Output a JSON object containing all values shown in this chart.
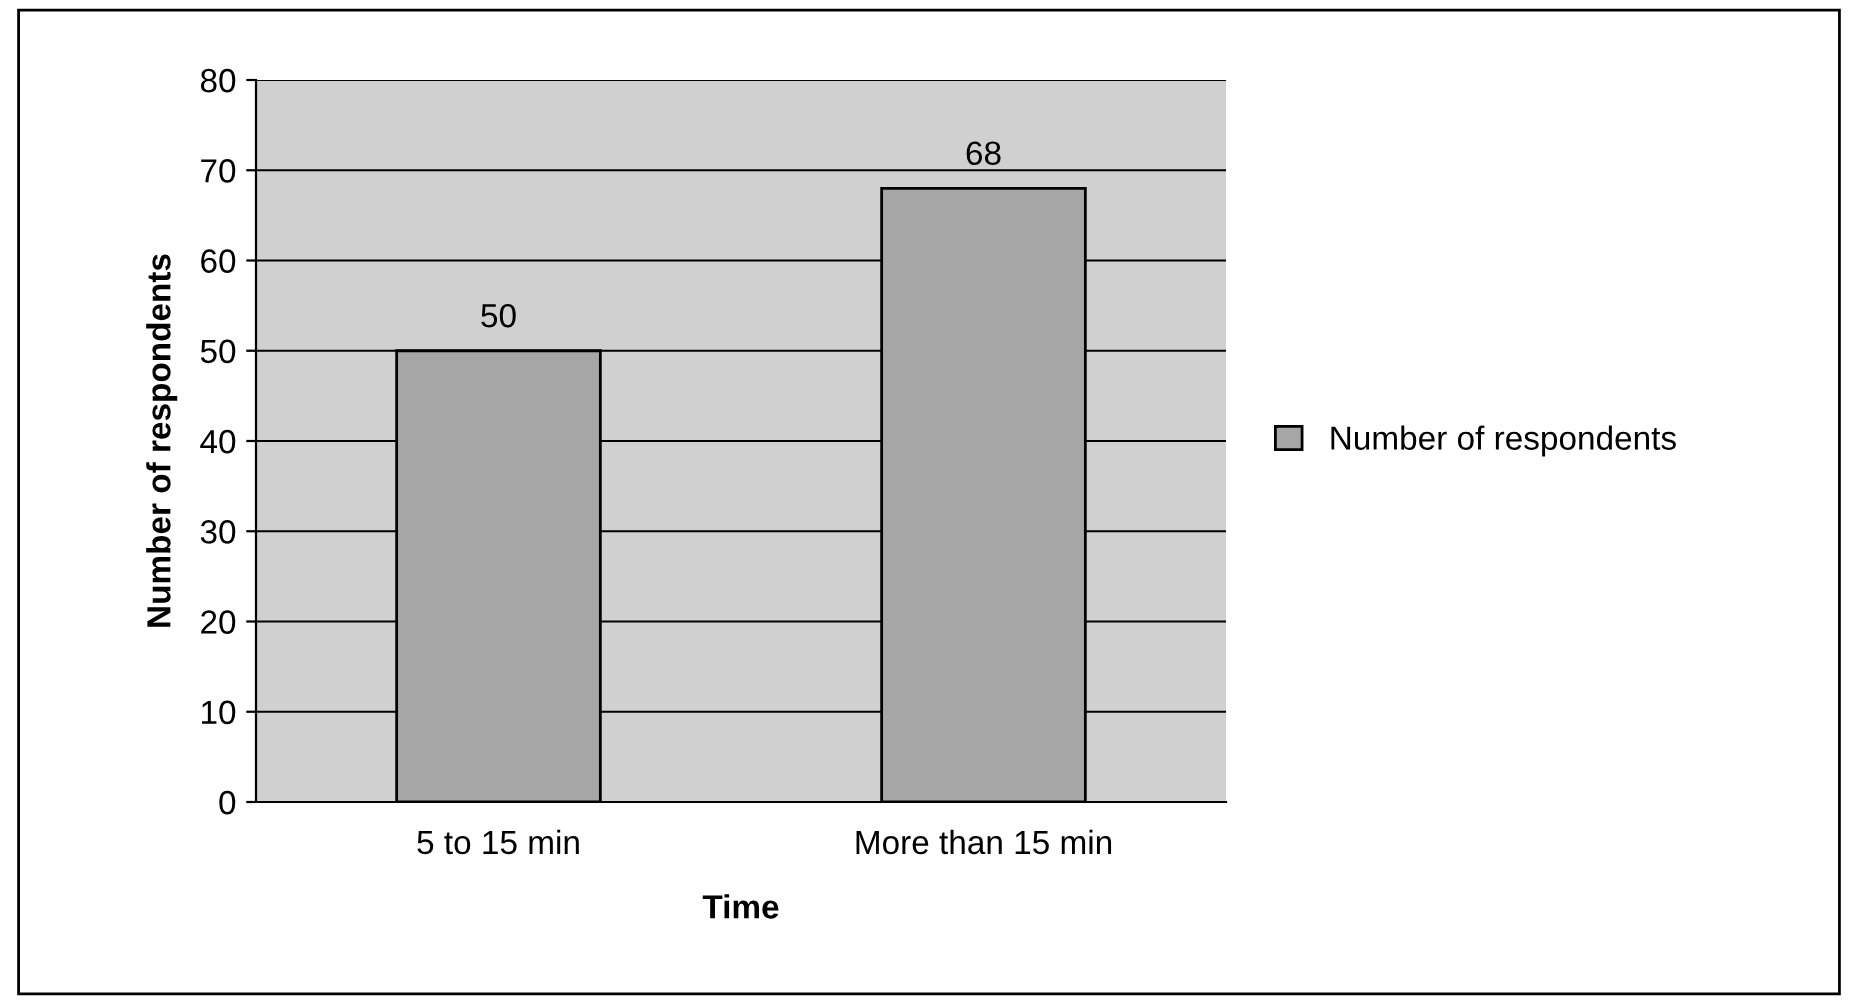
{
  "chart_data": {
    "type": "bar",
    "xlabel": "Time",
    "ylabel": "Number of respondents",
    "categories": [
      "5 to 15 min",
      "More than 15 min"
    ],
    "series": [
      {
        "name": "Number of respondents",
        "color": "#a6a6a6",
        "values": [
          50,
          68
        ]
      }
    ],
    "ylim": [
      0,
      80
    ],
    "yticks": [
      0,
      10,
      20,
      30,
      40,
      50,
      60,
      70,
      80
    ],
    "grid": "y",
    "legend": "right",
    "data_labels": true
  }
}
